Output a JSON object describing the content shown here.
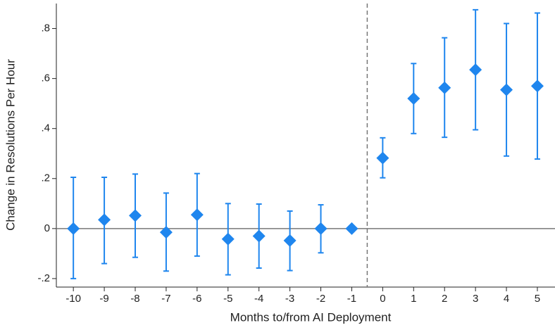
{
  "chart_data": {
    "type": "errorbar",
    "xlabel": "Months to/from AI Deployment",
    "ylabel": "Change in Resolutions Per Hour",
    "x": [
      -10,
      -9,
      -8,
      -7,
      -6,
      -5,
      -4,
      -3,
      -2,
      -1,
      0,
      1,
      2,
      3,
      4,
      5
    ],
    "values": [
      0.0,
      0.035,
      0.052,
      -0.015,
      0.055,
      -0.042,
      -0.03,
      -0.048,
      0.0,
      0.0,
      0.282,
      0.52,
      0.563,
      0.635,
      0.555,
      0.57
    ],
    "lower": [
      -0.2,
      -0.14,
      -0.115,
      -0.17,
      -0.11,
      -0.185,
      -0.158,
      -0.168,
      -0.097,
      null,
      0.203,
      0.38,
      0.365,
      0.395,
      0.29,
      0.278
    ],
    "upper": [
      0.205,
      0.205,
      0.218,
      0.142,
      0.22,
      0.1,
      0.098,
      0.07,
      0.095,
      null,
      0.363,
      0.66,
      0.763,
      0.875,
      0.82,
      0.862
    ],
    "color": "#1f86ee",
    "xlim": [
      -10.55,
      5.57
    ],
    "ylim": [
      -0.234,
      0.9
    ],
    "xticks": [
      -10,
      -9,
      -8,
      -7,
      -6,
      -5,
      -4,
      -3,
      -2,
      -1,
      0,
      1,
      2,
      3,
      4,
      5
    ],
    "yticks": [
      {
        "value": -0.2,
        "label": "-.2"
      },
      0,
      {
        "value": 0.2,
        "label": ".2"
      },
      {
        "value": 0.4,
        "label": ".4"
      },
      {
        "value": 0.6,
        "label": ".6"
      },
      {
        "value": 0.8,
        "label": ".8"
      }
    ],
    "hline": 0,
    "vline": -0.5
  }
}
